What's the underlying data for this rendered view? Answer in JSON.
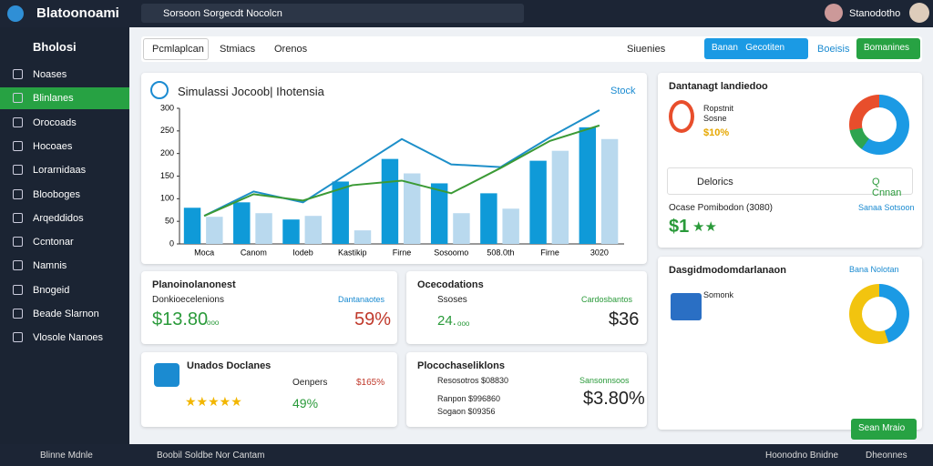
{
  "topbar": {
    "logo": "Blatoonoami",
    "search": "Sorsoon Sorgecdt Nocolcn",
    "user": "Stanodotho"
  },
  "sidebar": {
    "title": "Bholosi",
    "items": [
      "Noases",
      "Blinlanes",
      "Orocoads",
      "Hocoaes",
      "Lorarnidaas",
      "Blooboges",
      "Arqeddidos",
      "Ccntonar",
      "Namnis",
      "Bnogeid",
      "Beade Slarnon",
      "Vlosole Nanoes"
    ]
  },
  "tabs": {
    "items": [
      "Pcmlaplcan",
      "Stmiacs",
      "Orenos"
    ],
    "filter": "Siuenies",
    "buttons": [
      "Banan",
      "Gecotiten"
    ],
    "link": "Boeisis",
    "primary": "Bomanines"
  },
  "chart_data": {
    "type": "bar",
    "title": "Simulassi Jocoob| Ihotensia",
    "action": "Stock",
    "categories": [
      "Moca",
      "Canom",
      "Iodeb",
      "Kastikip",
      "Firne",
      "Sosoomo",
      "508.0th",
      "Firne",
      "3020"
    ],
    "ylim": [
      0,
      300
    ],
    "yticks": [
      0,
      50,
      100,
      150,
      200,
      250,
      300
    ],
    "series": [
      {
        "name": "A",
        "color": "#0f9ad8",
        "values": [
          80,
          92,
          54,
          138,
          188,
          134,
          112,
          184,
          258
        ]
      },
      {
        "name": "B",
        "color": "#b9d9ee",
        "values": [
          60,
          68,
          62,
          30,
          156,
          68,
          78,
          206,
          232
        ]
      }
    ],
    "lines": [
      {
        "name": "C",
        "color": "#1d8fc9",
        "values": [
          62,
          116,
          92,
          162,
          232,
          176,
          170,
          236,
          296
        ]
      },
      {
        "name": "D",
        "color": "#3b9a35",
        "values": [
          62,
          110,
          96,
          130,
          140,
          112,
          168,
          228,
          262
        ]
      }
    ]
  },
  "card_right1": {
    "title": "Dantanagt landiedoo",
    "item1": "Ropstnit",
    "item2": "Sosne",
    "value": "$10%",
    "sub_title": "Delorics",
    "sub_action": "Q Cnnan",
    "row_label": "Ocase Pomibodon (3080)",
    "row_link": "Sanaa Sotsoon",
    "amount": "$1",
    "rating": "★★"
  },
  "card_right2": {
    "title": "Dasgidmodomdarlanaon",
    "link": "Bana Nolotan",
    "item": "Somonk",
    "button": "Sean Mraio"
  },
  "card_a": {
    "title": "Planoinolanonest",
    "label": "Donkioecelenions",
    "link": "Dantanaotes",
    "amount": "$13.80",
    "unit": "ooo",
    "pct": "59%"
  },
  "card_b": {
    "title": "Ocecodations",
    "label": "Ssoses",
    "link": "Cardosbantos",
    "amount": "24.",
    "unit": "ooo",
    "value": "$36"
  },
  "card_c": {
    "title": "Unados Doclanes",
    "label": "Oenpers",
    "value": "$165%",
    "rating": "★★★★★",
    "pct": "49%"
  },
  "card_d": {
    "title": "Plocochaseliklons",
    "row1": "Resosotros $08830",
    "row1_link": "Sansonnsoos",
    "row2": "Ranpon $996860",
    "row3": "Sogaon $09356",
    "amount": "$3.80%"
  },
  "footer": {
    "left": "Blinne Mdnle",
    "mid": "Boobil Soldbe Nor Cantam",
    "right1": "Hoonodno Bnidne",
    "right2": "Dheonnes"
  }
}
